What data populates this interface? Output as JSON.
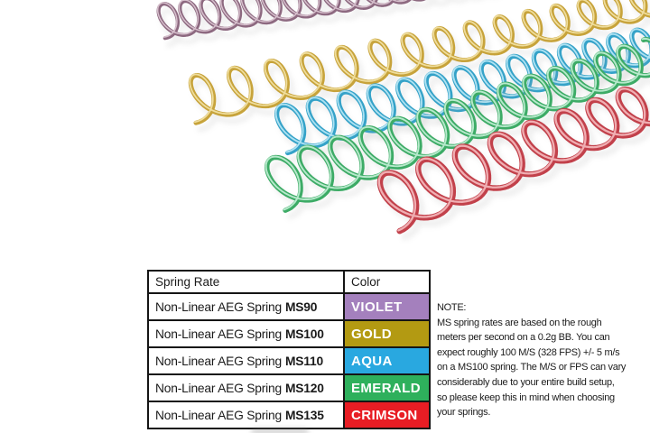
{
  "table": {
    "headers": [
      {
        "label": "Spring Rate"
      },
      {
        "label": "Color"
      }
    ],
    "rows": [
      {
        "product": "Non-Linear AEG Spring",
        "model": "MS90",
        "color_name": "VIOLET",
        "color_hex": "#a480bd"
      },
      {
        "product": "Non-Linear AEG Spring",
        "model": "MS100",
        "color_name": "GOLD",
        "color_hex": "#b39a12"
      },
      {
        "product": "Non-Linear AEG Spring",
        "model": "MS110",
        "color_name": "AQUA",
        "color_hex": "#29a8e0"
      },
      {
        "product": "Non-Linear AEG Spring",
        "model": "MS120",
        "color_name": "EMERALD",
        "color_hex": "#2eb05c"
      },
      {
        "product": "Non-Linear AEG Spring",
        "model": "MS135",
        "color_name": "CRIMSON",
        "color_hex": "#e81d24"
      }
    ]
  },
  "note": {
    "heading": "NOTE:",
    "body": "MS spring rates are based on the rough\nmeters per second on a 0.2g BB. You can\nexpect roughly 100 M/S (328 FPS) +/- 5 m/s\non a MS100 spring. The M/S or FPS can vary\nconsiderably due to your entire build setup,\nso please keep this in mind when choosing\nyour springs."
  },
  "springs_photo": {
    "background": "#ffffff",
    "springs": [
      {
        "name": "violet-spring",
        "color": "#8d6980",
        "highlight": "#d6bfcc"
      },
      {
        "name": "gold-spring",
        "color": "#c7a33b",
        "highlight": "#efdd9c"
      },
      {
        "name": "aqua-spring",
        "color": "#35a2c8",
        "highlight": "#aee2f2"
      },
      {
        "name": "emerald-spring",
        "color": "#3dab66",
        "highlight": "#b6e9cb"
      },
      {
        "name": "crimson-spring",
        "color": "#c2414b",
        "highlight": "#f0aeb2"
      }
    ]
  }
}
